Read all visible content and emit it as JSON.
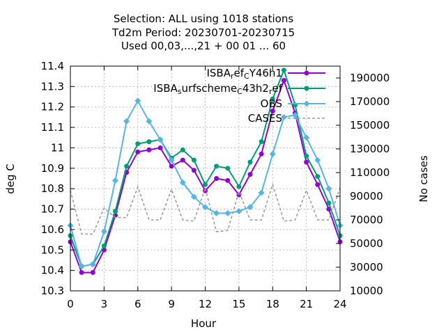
{
  "chart_data": {
    "type": "line",
    "title_lines": [
      "Selection: ALL using  1018 stations",
      "Td2m   Period: 20230701-20230715",
      "Used  00,03,...,21  + 00 01 ... 60"
    ],
    "xlabel": "Hour",
    "ylabel": "deg C",
    "y2label": "No cases",
    "xlim": [
      0,
      24
    ],
    "ylim": [
      10.3,
      11.4
    ],
    "y2lim": [
      10000,
      200000
    ],
    "xticks": [
      "0",
      "3",
      "6",
      "9",
      "12",
      "15",
      "18",
      "21",
      "24"
    ],
    "yticks": [
      "10.3",
      "10.4",
      "10.5",
      "10.6",
      "10.7",
      "10.8",
      "10.9",
      "11",
      "11.1",
      "11.2",
      "11.3",
      "11.4"
    ],
    "y2ticks": [
      "10000",
      "30000",
      "50000",
      "70000",
      "90000",
      "110000",
      "130000",
      "150000",
      "170000",
      "190000"
    ],
    "grid": true,
    "legend_position": "top-right",
    "x": [
      0,
      1,
      2,
      3,
      4,
      5,
      6,
      7,
      8,
      9,
      10,
      11,
      12,
      13,
      14,
      15,
      16,
      17,
      18,
      19,
      20,
      21,
      22,
      23,
      24
    ],
    "series": [
      {
        "name": "ISBA_ref_CY46h1",
        "legend_parts": [
          [
            "ISBA",
            ""
          ],
          [
            "r",
            "sub"
          ],
          [
            "ef",
            ""
          ],
          [
            "C",
            "sub"
          ],
          [
            "Y46h1",
            ""
          ]
        ],
        "color": "#9400d3",
        "marker": "circle",
        "axis": "y",
        "values": [
          10.54,
          10.39,
          10.39,
          10.5,
          10.67,
          10.88,
          10.98,
          10.99,
          11.0,
          10.91,
          10.94,
          10.89,
          10.79,
          10.85,
          10.84,
          10.77,
          10.87,
          10.97,
          11.18,
          11.33,
          11.17,
          10.93,
          10.82,
          10.7,
          10.54
        ]
      },
      {
        "name": "ISBA_surfscheme_C43h2_ref",
        "legend_parts": [
          [
            "ISBA",
            ""
          ],
          [
            "s",
            "sub"
          ],
          [
            "urfscheme",
            ""
          ],
          [
            "C",
            "sub"
          ],
          [
            "43h2",
            ""
          ],
          [
            "r",
            "sub"
          ],
          [
            "ef",
            ""
          ]
        ],
        "color": "#009e73",
        "marker": "circle",
        "axis": "y",
        "values": [
          10.57,
          10.42,
          10.43,
          10.52,
          10.69,
          10.91,
          11.02,
          11.03,
          11.04,
          10.95,
          10.99,
          10.94,
          10.82,
          10.91,
          10.9,
          10.81,
          10.93,
          11.03,
          11.24,
          11.38,
          11.21,
          10.96,
          10.86,
          10.73,
          10.57
        ]
      },
      {
        "name": "OBS",
        "legend_parts": [
          [
            "OBS",
            ""
          ]
        ],
        "color": "#56b4e9",
        "marker": "diamond",
        "axis": "y",
        "values": [
          10.62,
          10.42,
          10.43,
          10.59,
          10.84,
          11.13,
          11.23,
          11.13,
          11.04,
          10.94,
          10.83,
          10.76,
          10.71,
          10.68,
          10.68,
          10.69,
          10.71,
          10.78,
          10.97,
          11.15,
          11.16,
          11.05,
          10.94,
          10.8,
          10.62
        ]
      },
      {
        "name": "CASES",
        "legend_parts": [
          [
            "CASES",
            ""
          ]
        ],
        "color": "#999999",
        "dashed": true,
        "axis": "y2",
        "values": [
          95000,
          58000,
          58000,
          80000,
          72000,
          72000,
          98000,
          70000,
          70000,
          96000,
          70000,
          69000,
          97000,
          60000,
          61000,
          94000,
          70000,
          70000,
          100000,
          69000,
          70000,
          95000,
          70000,
          70000,
          97000
        ]
      }
    ]
  }
}
